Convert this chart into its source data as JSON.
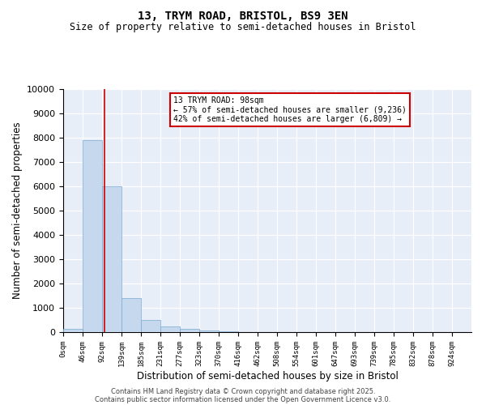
{
  "title": "13, TRYM ROAD, BRISTOL, BS9 3EN",
  "subtitle": "Size of property relative to semi-detached houses in Bristol",
  "xlabel": "Distribution of semi-detached houses by size in Bristol",
  "ylabel": "Number of semi-detached properties",
  "bin_edges": [
    0,
    46,
    92,
    139,
    185,
    231,
    277,
    323,
    370,
    416,
    462,
    508,
    554,
    601,
    647,
    693,
    739,
    785,
    832,
    878,
    924
  ],
  "bar_heights": [
    150,
    7900,
    6000,
    1400,
    500,
    250,
    150,
    80,
    30,
    10,
    5,
    2,
    1,
    0,
    0,
    0,
    0,
    0,
    0,
    0
  ],
  "bar_color": "#c5d8ee",
  "bar_edgecolor": "#7aaad0",
  "property_size": 98,
  "pct_smaller": 57,
  "pct_larger": 42,
  "count_smaller": 9236,
  "count_larger": 6809,
  "vline_color": "#cc0000",
  "annotation_box_color": "#cc0000",
  "ylim": [
    0,
    10000
  ],
  "yticks": [
    0,
    1000,
    2000,
    3000,
    4000,
    5000,
    6000,
    7000,
    8000,
    9000,
    10000
  ],
  "background_color": "#e8eef8",
  "grid_color": "#ffffff",
  "footer_line1": "Contains HM Land Registry data © Crown copyright and database right 2025.",
  "footer_line2": "Contains public sector information licensed under the Open Government Licence v3.0."
}
